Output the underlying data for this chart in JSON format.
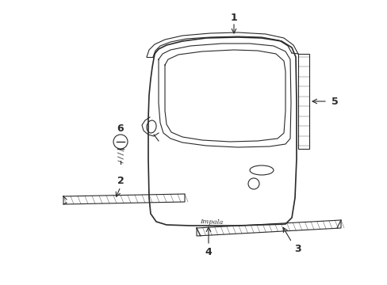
{
  "background_color": "#ffffff",
  "line_color": "#2a2a2a",
  "label_color": "#2a2a2a",
  "figsize": [
    4.89,
    3.6
  ],
  "dpi": 100
}
